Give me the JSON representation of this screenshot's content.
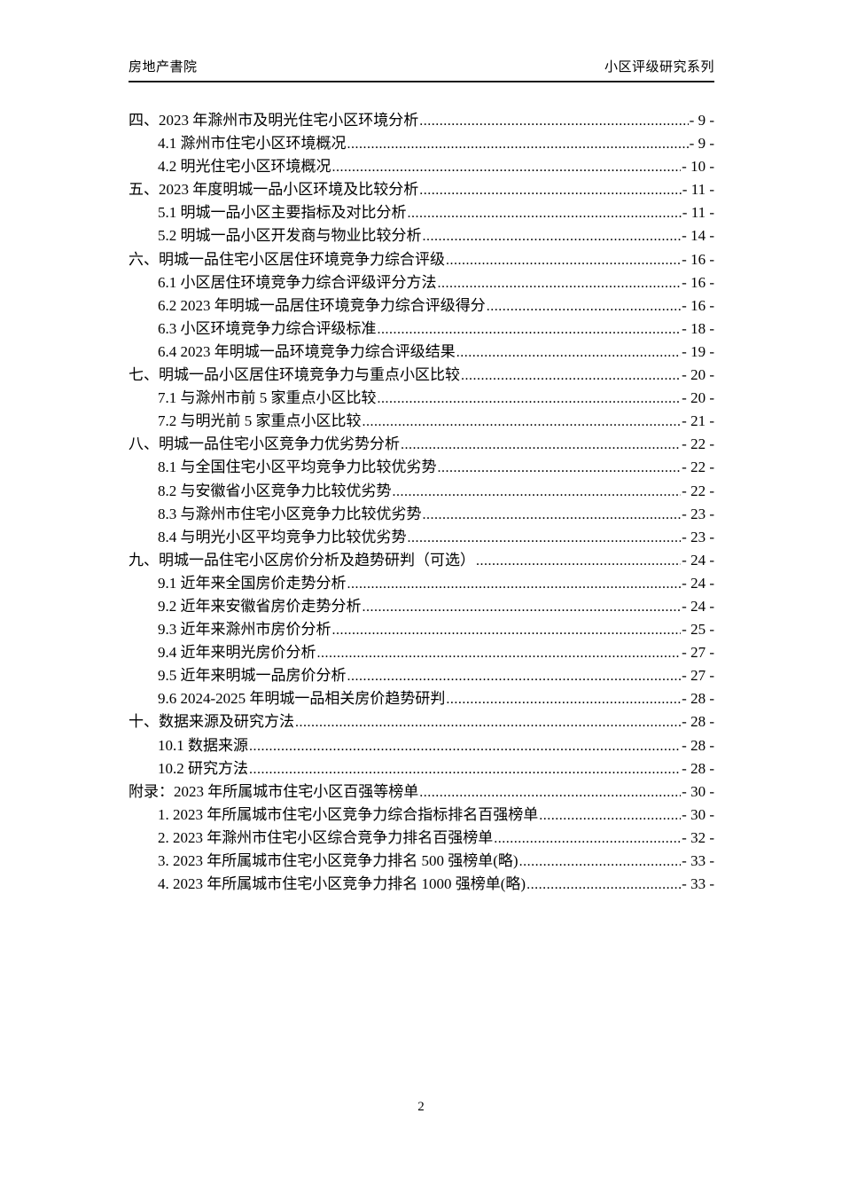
{
  "header": {
    "left": "房地产書院",
    "right": "小区评级研究系列"
  },
  "toc": {
    "entries": [
      {
        "level": 0,
        "title": "四、2023 年滁州市及明光住宅小区环境分析",
        "page": "- 9 -"
      },
      {
        "level": 1,
        "title": "4.1 滁州市住宅小区环境概况",
        "page": "- 9 -"
      },
      {
        "level": 1,
        "title": "4.2 明光住宅小区环境概况",
        "page": "- 10 -"
      },
      {
        "level": 0,
        "title": "五、2023 年度明城一品小区环境及比较分析",
        "page": "- 11 -"
      },
      {
        "level": 1,
        "title": "5.1 明城一品小区主要指标及对比分析",
        "page": "- 11 -"
      },
      {
        "level": 1,
        "title": "5.2 明城一品小区开发商与物业比较分析",
        "page": "- 14 -"
      },
      {
        "level": 0,
        "title": "六、明城一品住宅小区居住环境竞争力综合评级",
        "page": "- 16 -"
      },
      {
        "level": 1,
        "title": "6.1 小区居住环境竞争力综合评级评分方法",
        "page": "- 16 -"
      },
      {
        "level": 1,
        "title": "6.2 2023 年明城一品居住环境竞争力综合评级得分",
        "page": "- 16 -"
      },
      {
        "level": 1,
        "title": "6.3 小区环境竞争力综合评级标准",
        "page": "- 18 -"
      },
      {
        "level": 1,
        "title": "6.4 2023 年明城一品环境竞争力综合评级结果",
        "page": "- 19 -"
      },
      {
        "level": 0,
        "title": "七、明城一品小区居住环境竞争力与重点小区比较",
        "page": "- 20 -"
      },
      {
        "level": 1,
        "title": "7.1 与滁州市前 5 家重点小区比较",
        "page": "- 20 -"
      },
      {
        "level": 1,
        "title": "7.2 与明光前 5 家重点小区比较",
        "page": "- 21 -"
      },
      {
        "level": 0,
        "title": "八、明城一品住宅小区竞争力优劣势分析",
        "page": "- 22 -"
      },
      {
        "level": 1,
        "title": "8.1 与全国住宅小区平均竞争力比较优劣势",
        "page": "- 22 -"
      },
      {
        "level": 1,
        "title": "8.2 与安徽省小区竞争力比较优劣势",
        "page": "- 22 -"
      },
      {
        "level": 1,
        "title": "8.3 与滁州市住宅小区竞争力比较优劣势",
        "page": "- 23 -"
      },
      {
        "level": 1,
        "title": "8.4 与明光小区平均竞争力比较优劣势",
        "page": "- 23 -"
      },
      {
        "level": 0,
        "title": "九、明城一品住宅小区房价分析及趋势研判（可选） ",
        "page": "- 24 -"
      },
      {
        "level": 1,
        "title": "9.1 近年来全国房价走势分析",
        "page": "- 24 -"
      },
      {
        "level": 1,
        "title": "9.2 近年来安徽省房价走势分析",
        "page": "- 24 -"
      },
      {
        "level": 1,
        "title": "9.3 近年来滁州市房价分析",
        "page": "- 25 -"
      },
      {
        "level": 1,
        "title": "9.4 近年来明光房价分析",
        "page": "- 27 -"
      },
      {
        "level": 1,
        "title": "9.5 近年来明城一品房价分析",
        "page": "- 27 -"
      },
      {
        "level": 1,
        "title": "9.6 2024-2025 年明城一品相关房价趋势研判",
        "page": "- 28 -"
      },
      {
        "level": 0,
        "title": "十、数据来源及研究方法",
        "page": "- 28 -"
      },
      {
        "level": 1,
        "title": "10.1 数据来源",
        "page": "- 28 -"
      },
      {
        "level": 1,
        "title": "10.2 研究方法",
        "page": "- 28 -"
      },
      {
        "level": 0,
        "title": "附录：2023 年所属城市住宅小区百强等榜单",
        "page": "- 30 -"
      },
      {
        "level": 1,
        "title": "1. 2023 年所属城市住宅小区竞争力综合指标排名百强榜单",
        "page": "- 30 -"
      },
      {
        "level": 1,
        "title": "2. 2023 年滁州市住宅小区综合竞争力排名百强榜单",
        "page": "- 32 -"
      },
      {
        "level": 1,
        "title": "3. 2023 年所属城市住宅小区竞争力排名 500 强榜单(略)",
        "page": "- 33 -"
      },
      {
        "level": 1,
        "title": "4. 2023 年所属城市住宅小区竞争力排名 1000 强榜单(略)",
        "page": "- 33 -"
      }
    ]
  },
  "footer": {
    "page_number": "2"
  }
}
